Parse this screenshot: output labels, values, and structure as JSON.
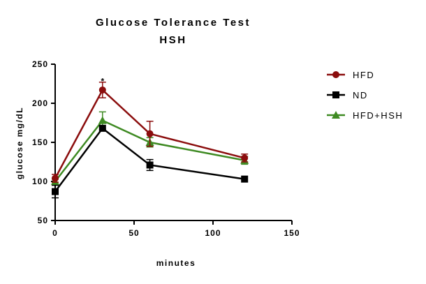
{
  "chart_data": {
    "type": "line",
    "title": "Glucose Tolerance Test",
    "subtitle": "HSH",
    "xlabel": "minutes",
    "ylabel": "glucose mg/dL",
    "xlim": [
      0,
      150
    ],
    "ylim": [
      50,
      250
    ],
    "x_ticks": [
      0,
      50,
      100,
      150
    ],
    "y_ticks": [
      50,
      100,
      150,
      200,
      250
    ],
    "grid": false,
    "legend": "right",
    "x": [
      0,
      30,
      60,
      120
    ],
    "series": [
      {
        "name": "HFD",
        "color": "#8b0d0d",
        "marker": "circle",
        "values": [
          104,
          217,
          161,
          130
        ],
        "error": [
          5,
          10,
          16,
          5
        ]
      },
      {
        "name": "ND",
        "color": "#000000",
        "marker": "square",
        "values": [
          87,
          168,
          121,
          103
        ],
        "error": [
          8,
          0,
          7,
          0
        ]
      },
      {
        "name": "HFD+HSH",
        "color": "#3e8a22",
        "marker": "triangle",
        "values": [
          100,
          178,
          150,
          127
        ],
        "error": [
          3,
          11,
          6,
          5
        ]
      }
    ],
    "annotations": [
      {
        "text": "*",
        "x": 30,
        "y": 228
      }
    ]
  }
}
